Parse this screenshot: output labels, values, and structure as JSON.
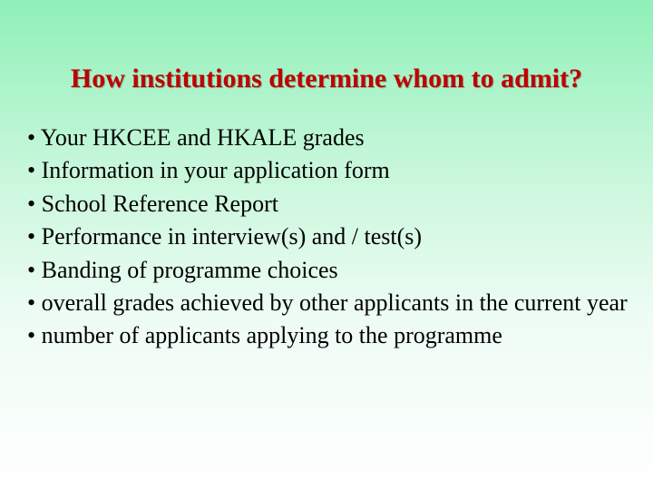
{
  "slide": {
    "background": {
      "gradient_top": "#8ff0b8",
      "gradient_mid1": "#c8f7db",
      "gradient_mid2": "#eefcf4",
      "gradient_bottom": "#ffffff"
    },
    "title": {
      "text": "How institutions determine whom to admit?",
      "color": "#c00000",
      "fontsize": 30,
      "font_weight": "bold",
      "font_family": "Times New Roman"
    },
    "bullets": {
      "fontsize": 26,
      "color": "#000000",
      "font_family": "Times New Roman",
      "items": [
        "Your HKCEE and HKALE grades",
        "Information in your application form",
        "School Reference Report",
        "Performance in interview(s) and / test(s)",
        "Banding of programme choices",
        "overall grades achieved by other applicants in the current year",
        "number of applicants applying to the programme"
      ]
    }
  }
}
